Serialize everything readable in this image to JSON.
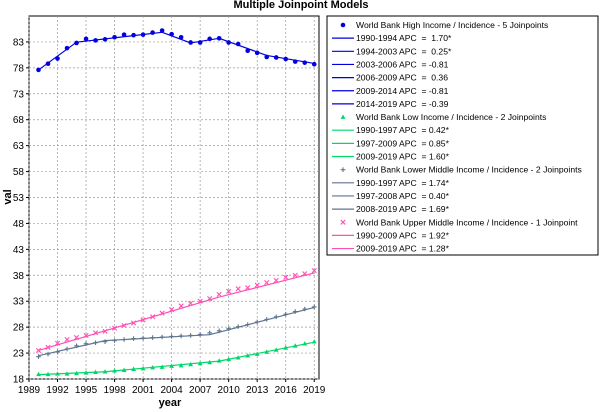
{
  "chart_data": {
    "type": "line",
    "title": "Multiple Joinpoint Models",
    "xlabel": "year",
    "ylabel": "val",
    "xlim": [
      1989,
      2019.5
    ],
    "ylim": [
      18,
      88
    ],
    "xticks": [
      1989,
      1992,
      1995,
      1998,
      2001,
      2004,
      2007,
      2010,
      2013,
      2016,
      2019
    ],
    "yticks": [
      18,
      23,
      28,
      33,
      38,
      43,
      48,
      53,
      58,
      63,
      68,
      73,
      78,
      83
    ],
    "grid": true,
    "legend_position": "right",
    "series": [
      {
        "name": "World Bank High Income / Incidence - 5 Joinpoints",
        "color": "#0000e0",
        "marker": "circle",
        "x": [
          1990,
          1991,
          1992,
          1993,
          1994,
          1995,
          1996,
          1997,
          1998,
          1999,
          2000,
          2001,
          2002,
          2003,
          2004,
          2005,
          2006,
          2007,
          2008,
          2009,
          2010,
          2011,
          2012,
          2013,
          2014,
          2015,
          2016,
          2017,
          2018,
          2019
        ],
        "observed": [
          77.6,
          78.8,
          79.8,
          81.8,
          82.8,
          83.6,
          83.3,
          83.5,
          83.9,
          84.4,
          84.3,
          84.4,
          84.8,
          85.2,
          84.5,
          83.9,
          82.9,
          82.9,
          83.6,
          83.7,
          82.9,
          82.6,
          81.3,
          80.9,
          80.1,
          80.0,
          79.7,
          79.2,
          79.0,
          78.7
        ],
        "segments": [
          {
            "label": "1990-1994 APC  =  1.70*",
            "x": [
              1990,
              1994
            ],
            "y": [
              77.6,
              82.95
            ]
          },
          {
            "label": "1994-2003 APC  =  0.25*",
            "x": [
              1994,
              2003
            ],
            "y": [
              82.95,
              84.85
            ]
          },
          {
            "label": "2003-2006 APC  = -0.81",
            "x": [
              2003,
              2006
            ],
            "y": [
              84.85,
              82.8
            ]
          },
          {
            "label": "2006-2009 APC  =  0.36",
            "x": [
              2006,
              2009
            ],
            "y": [
              82.8,
              83.7
            ]
          },
          {
            "label": "2009-2014 APC  = -0.81",
            "x": [
              2009,
              2014
            ],
            "y": [
              83.7,
              80.4
            ]
          },
          {
            "label": "2014-2019 APC  = -0.39",
            "x": [
              2014,
              2019
            ],
            "y": [
              80.4,
              78.85
            ]
          }
        ]
      },
      {
        "name": "World Bank Low Income / Incidence - 2 Joinpoints",
        "color": "#00d76a",
        "marker": "triangle",
        "x": [
          1990,
          1991,
          1992,
          1993,
          1994,
          1995,
          1996,
          1997,
          1998,
          1999,
          2000,
          2001,
          2002,
          2003,
          2004,
          2005,
          2006,
          2007,
          2008,
          2009,
          2010,
          2011,
          2012,
          2013,
          2014,
          2015,
          2016,
          2017,
          2018,
          2019
        ],
        "observed": [
          18.9,
          18.9,
          19.0,
          19.0,
          19.1,
          19.2,
          19.3,
          19.4,
          19.6,
          19.7,
          19.9,
          20.0,
          20.2,
          20.3,
          20.5,
          20.6,
          20.8,
          21.0,
          21.2,
          21.5,
          21.8,
          22.1,
          22.5,
          22.8,
          23.2,
          23.6,
          24.0,
          24.4,
          24.8,
          25.2
        ],
        "segments": [
          {
            "label": "1990-1997 APC  = 0.42*",
            "x": [
              1990,
              1997
            ],
            "y": [
              18.85,
              19.4
            ]
          },
          {
            "label": "1997-2009 APC  = 0.85*",
            "x": [
              1997,
              2009
            ],
            "y": [
              19.4,
              21.45
            ]
          },
          {
            "label": "2009-2019 APC  = 1.60*",
            "x": [
              2009,
              2019
            ],
            "y": [
              21.45,
              25.1
            ]
          }
        ]
      },
      {
        "name": "World Bank Lower Middle Income / Incidence - 2 Joinpoints",
        "color": "#5f7590",
        "marker": "plus",
        "x": [
          1990,
          1991,
          1992,
          1993,
          1994,
          1995,
          1996,
          1997,
          1998,
          1999,
          2000,
          2001,
          2002,
          2003,
          2004,
          2005,
          2006,
          2007,
          2008,
          2009,
          2010,
          2011,
          2012,
          2013,
          2014,
          2015,
          2016,
          2017,
          2018,
          2019
        ],
        "observed": [
          22.3,
          22.8,
          23.2,
          23.8,
          24.4,
          24.8,
          25.0,
          25.2,
          25.4,
          25.6,
          25.8,
          25.9,
          26.0,
          26.1,
          26.2,
          26.3,
          26.4,
          26.6,
          26.9,
          27.3,
          27.7,
          28.1,
          28.5,
          29.0,
          29.5,
          30.0,
          30.5,
          31.0,
          31.5,
          31.9
        ],
        "segments": [
          {
            "label": "1990-1997 APC  = 1.74*",
            "x": [
              1990,
              1997
            ],
            "y": [
              22.5,
              25.4
            ]
          },
          {
            "label": "1997-2008 APC  = 0.40*",
            "x": [
              1997,
              2008
            ],
            "y": [
              25.4,
              26.55
            ]
          },
          {
            "label": "2008-2019 APC  = 1.69*",
            "x": [
              2008,
              2019
            ],
            "y": [
              26.55,
              31.8
            ]
          }
        ]
      },
      {
        "name": "World Bank Upper Middle Income / Incidence - 1 Joinpoint",
        "color": "#ff4fb3",
        "marker": "x",
        "x": [
          1990,
          1991,
          1992,
          1993,
          1994,
          1995,
          1996,
          1997,
          1998,
          1999,
          2000,
          2001,
          2002,
          2003,
          2004,
          2005,
          2006,
          2007,
          2008,
          2009,
          2010,
          2011,
          2012,
          2013,
          2014,
          2015,
          2016,
          2017,
          2018,
          2019
        ],
        "observed": [
          23.5,
          24.1,
          24.9,
          25.6,
          26.0,
          26.4,
          26.9,
          27.2,
          27.8,
          28.3,
          28.8,
          29.4,
          30.0,
          30.7,
          31.4,
          32.1,
          32.6,
          33.0,
          33.5,
          34.3,
          34.9,
          35.4,
          35.6,
          36.1,
          36.6,
          37.0,
          37.6,
          38.0,
          38.3,
          38.9
        ],
        "segments": [
          {
            "label": "1990-2009 APC  = 1.92*",
            "x": [
              1990,
              2009
            ],
            "y": [
              23.5,
              33.8
            ]
          },
          {
            "label": "2009-2019 APC  = 1.28*",
            "x": [
              2009,
              2019
            ],
            "y": [
              33.8,
              38.45
            ]
          }
        ]
      }
    ]
  }
}
